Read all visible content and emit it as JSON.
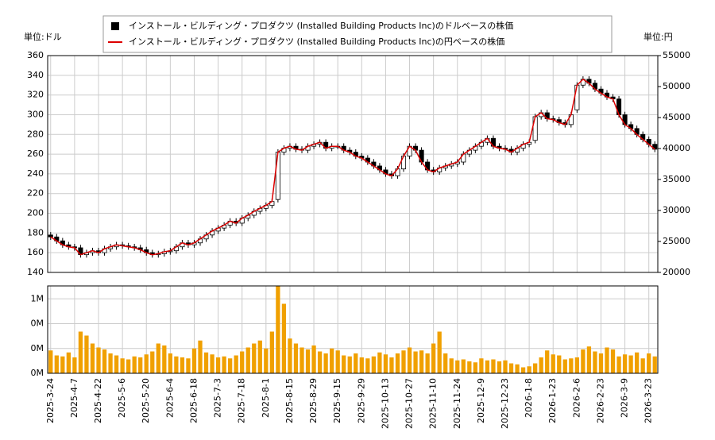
{
  "chart_data": [
    {
      "type": "candlestick",
      "y_label": "単位:ドル",
      "y2_label": "単位:円",
      "series": [
        {
          "name": "インストール・ビルディング・プロダクツ (Installed Building Products Inc)のドルベースの株価",
          "color": "#000000",
          "open": [
            178,
            176,
            172,
            168,
            166,
            165,
            158,
            160,
            162,
            160,
            164,
            166,
            168,
            167,
            166,
            165,
            163,
            160,
            158,
            159,
            161,
            162,
            166,
            170,
            168,
            170,
            174,
            178,
            182,
            185,
            188,
            192,
            190,
            195,
            198,
            202,
            205,
            208,
            214,
            262,
            266,
            268,
            265,
            264,
            268,
            270,
            272,
            266,
            268,
            268,
            264,
            262,
            258,
            256,
            252,
            248,
            244,
            240,
            238,
            245,
            258,
            268,
            264,
            252,
            244,
            242,
            246,
            248,
            250,
            252,
            260,
            264,
            268,
            272,
            276,
            268,
            266,
            265,
            262,
            266,
            270,
            274,
            298,
            302,
            296,
            295,
            292,
            290,
            305,
            330,
            336,
            332,
            326,
            322,
            318,
            316,
            300,
            290,
            286,
            280,
            275,
            270
          ],
          "high": [
            181,
            179,
            175,
            171,
            169,
            168,
            163,
            165,
            165,
            167,
            169,
            171,
            171,
            170,
            169,
            168,
            166,
            163,
            162,
            164,
            165,
            169,
            173,
            173,
            173,
            177,
            181,
            185,
            188,
            191,
            195,
            195,
            198,
            201,
            205,
            208,
            211,
            215,
            265,
            269,
            271,
            271,
            268,
            271,
            273,
            275,
            275,
            271,
            271,
            271,
            267,
            265,
            261,
            259,
            255,
            251,
            247,
            243,
            248,
            261,
            271,
            271,
            267,
            255,
            247,
            249,
            251,
            253,
            255,
            263,
            267,
            271,
            275,
            279,
            279,
            271,
            269,
            268,
            269,
            273,
            275,
            301,
            305,
            305,
            299,
            298,
            295,
            303,
            333,
            339,
            339,
            335,
            329,
            325,
            321,
            319,
            303,
            293,
            289,
            283,
            278,
            273
          ],
          "low": [
            173,
            169,
            165,
            163,
            162,
            155,
            155,
            157,
            157,
            157,
            161,
            163,
            164,
            163,
            162,
            160,
            157,
            155,
            155,
            156,
            158,
            159,
            163,
            165,
            165,
            167,
            171,
            175,
            179,
            182,
            185,
            187,
            187,
            192,
            195,
            199,
            202,
            205,
            211,
            259,
            263,
            262,
            261,
            261,
            265,
            267,
            263,
            263,
            265,
            261,
            259,
            255,
            253,
            249,
            245,
            241,
            237,
            235,
            235,
            242,
            255,
            261,
            249,
            241,
            239,
            239,
            243,
            245,
            247,
            249,
            257,
            261,
            265,
            269,
            265,
            263,
            262,
            259,
            259,
            263,
            267,
            271,
            295,
            293,
            292,
            289,
            287,
            287,
            302,
            327,
            329,
            323,
            319,
            315,
            313,
            297,
            287,
            283,
            277,
            272,
            267,
            262
          ],
          "close": [
            176,
            172,
            168,
            166,
            165,
            158,
            160,
            162,
            160,
            164,
            166,
            168,
            167,
            166,
            165,
            163,
            160,
            158,
            159,
            161,
            162,
            166,
            170,
            168,
            170,
            174,
            178,
            182,
            185,
            188,
            192,
            190,
            195,
            198,
            202,
            205,
            208,
            212,
            262,
            266,
            268,
            265,
            264,
            268,
            270,
            272,
            266,
            268,
            268,
            264,
            262,
            258,
            256,
            252,
            248,
            244,
            240,
            238,
            245,
            258,
            268,
            264,
            252,
            244,
            242,
            246,
            248,
            250,
            252,
            260,
            264,
            268,
            272,
            276,
            268,
            266,
            265,
            262,
            266,
            270,
            272,
            298,
            302,
            296,
            295,
            292,
            290,
            300,
            330,
            336,
            332,
            326,
            322,
            318,
            316,
            300,
            290,
            286,
            280,
            275,
            270,
            265
          ]
        },
        {
          "name": "インストール・ビルディング・プロダクツ (Installed Building Products Inc)の円ベースの株価",
          "color": "#dd0000",
          "axis": "y2",
          "values": [
            25730,
            25090,
            24450,
            24140,
            23980,
            22860,
            23180,
            23500,
            23180,
            23820,
            24140,
            24450,
            24300,
            24140,
            23980,
            23660,
            23180,
            22860,
            23020,
            23340,
            23500,
            24140,
            24770,
            24450,
            24770,
            25410,
            26050,
            26680,
            27160,
            27640,
            28270,
            27950,
            28750,
            29230,
            29860,
            30340,
            30820,
            31450,
            39410,
            40050,
            40360,
            39890,
            39730,
            40360,
            40680,
            41000,
            40050,
            40360,
            40360,
            39730,
            39410,
            38770,
            38450,
            37820,
            37180,
            36550,
            35910,
            35590,
            36700,
            38770,
            40360,
            39730,
            37820,
            36550,
            36230,
            36860,
            37180,
            37500,
            37820,
            39090,
            39730,
            40360,
            41000,
            41640,
            40360,
            40050,
            39890,
            39410,
            40050,
            40680,
            41000,
            45140,
            45770,
            44820,
            44660,
            44180,
            43860,
            45450,
            50230,
            51180,
            50550,
            49590,
            48950,
            48320,
            48000,
            45450,
            43860,
            43230,
            42270,
            41480,
            40680,
            39890
          ]
        }
      ],
      "ylim": [
        140,
        360
      ],
      "yticks": [
        140,
        160,
        180,
        200,
        220,
        240,
        260,
        280,
        300,
        320,
        340,
        360
      ],
      "y2lim": [
        20000,
        55000
      ],
      "y2ticks": [
        20000,
        25000,
        30000,
        35000,
        40000,
        45000,
        50000,
        55000
      ],
      "grid": true,
      "legend": "top"
    },
    {
      "type": "bar",
      "categories": [
        "2025-3-24",
        null,
        null,
        null,
        "2025-4-7",
        null,
        null,
        null,
        "2025-4-22",
        null,
        null,
        null,
        "2025-5-6",
        null,
        null,
        null,
        "2025-5-20",
        null,
        null,
        null,
        "2025-6-4",
        null,
        null,
        null,
        "2025-6-18",
        null,
        null,
        null,
        "2025-7-3",
        null,
        null,
        null,
        "2025-7-18",
        null,
        null,
        null,
        "2025-8-1",
        null,
        null,
        null,
        "2025-8-15",
        null,
        null,
        null,
        "2025-8-29",
        null,
        null,
        null,
        "2025-9-15",
        null,
        null,
        null,
        "2025-9-29",
        null,
        null,
        null,
        "2025-10-13",
        null,
        null,
        null,
        "2025-10-27",
        null,
        null,
        null,
        "2025-11-10",
        null,
        null,
        null,
        "2025-11-24",
        null,
        null,
        null,
        "2025-12-9",
        null,
        null,
        null,
        "2025-12-23",
        null,
        null,
        null,
        "2026-1-8",
        null,
        null,
        null,
        "2026-1-23",
        null,
        null,
        null,
        "2026-2-6",
        null,
        null,
        null,
        "2026-2-23",
        null,
        null,
        null,
        "2026-3-9",
        null,
        null,
        null,
        "2026-3-23",
        null
      ],
      "values": [
        230000,
        180000,
        170000,
        210000,
        160000,
        420000,
        380000,
        300000,
        260000,
        240000,
        200000,
        180000,
        150000,
        140000,
        170000,
        160000,
        190000,
        220000,
        300000,
        280000,
        200000,
        170000,
        160000,
        150000,
        250000,
        330000,
        210000,
        190000,
        160000,
        170000,
        150000,
        180000,
        220000,
        260000,
        300000,
        330000,
        250000,
        420000,
        880000,
        700000,
        350000,
        300000,
        260000,
        240000,
        280000,
        220000,
        200000,
        250000,
        230000,
        180000,
        170000,
        200000,
        160000,
        150000,
        170000,
        210000,
        190000,
        160000,
        200000,
        230000,
        260000,
        220000,
        230000,
        200000,
        300000,
        420000,
        200000,
        150000,
        130000,
        140000,
        120000,
        110000,
        150000,
        130000,
        140000,
        120000,
        130000,
        100000,
        90000,
        60000,
        70000,
        100000,
        160000,
        230000,
        190000,
        180000,
        140000,
        150000,
        160000,
        240000,
        270000,
        220000,
        200000,
        260000,
        240000,
        170000,
        190000,
        180000,
        210000,
        150000,
        200000,
        170000
      ],
      "color": "#f0a000",
      "ylim": [
        0,
        880000
      ],
      "yticks": [
        {
          "value": 0,
          "label": "0M"
        },
        {
          "value": 250000,
          "label": "0M"
        },
        {
          "value": 500000,
          "label": "0M"
        },
        {
          "value": 750000,
          "label": "1M"
        }
      ],
      "grid": true
    }
  ]
}
